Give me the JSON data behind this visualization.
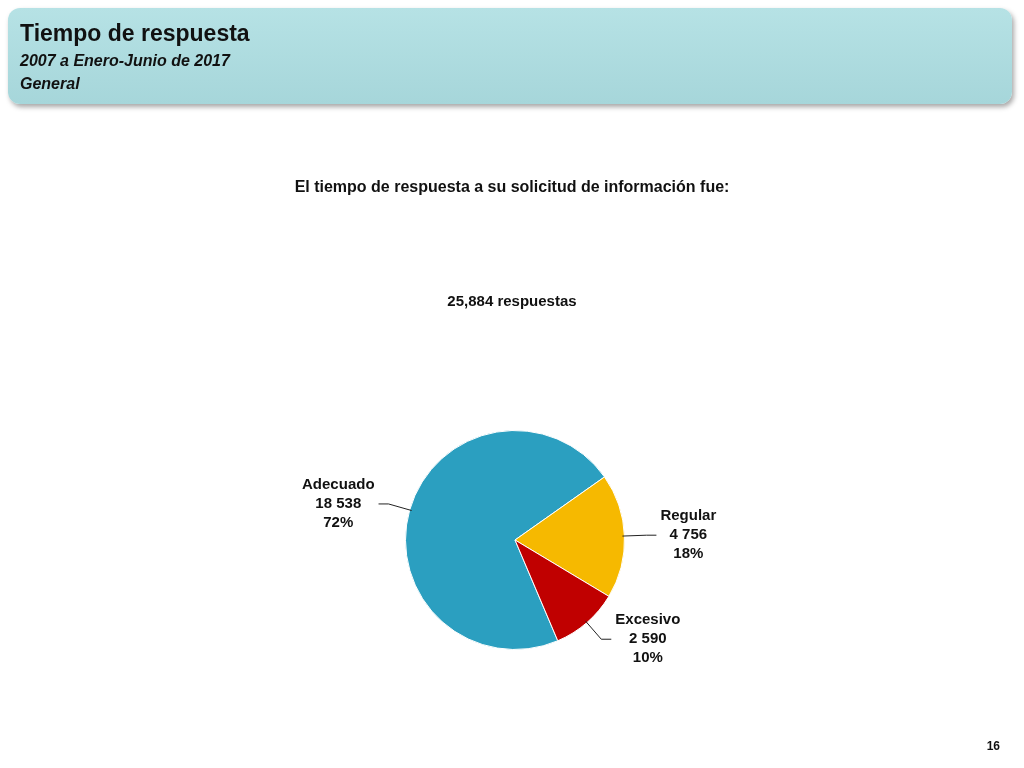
{
  "chart_data": {
    "type": "pie",
    "title": "Tiempo de respuesta",
    "subtitle": "2007 a Enero-Junio de 2017",
    "annotations": [
      "General",
      "El tiempo de respuesta a su solicitud de información fue:",
      "25,884 respuestas",
      "16"
    ],
    "categories": [
      "Adecuado",
      "Regular",
      "Excesivo"
    ],
    "values": [
      18538,
      4756,
      2590
    ],
    "colors": [
      "#2b9fc0",
      "#f6b900",
      "#c00000"
    ],
    "value_labels": [
      "18 538\n72%",
      "4 756\n18%",
      "2 590\n10%"
    ]
  }
}
